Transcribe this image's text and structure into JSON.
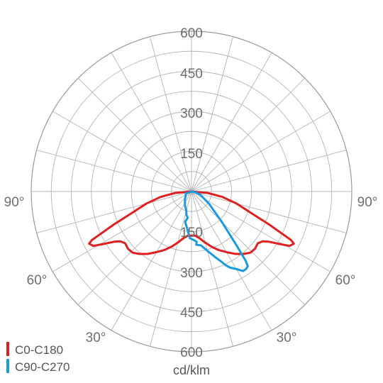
{
  "chart_data": {
    "type": "polar",
    "unit_label": "cd/klm",
    "radial_ticks": [
      "150",
      "300",
      "450",
      "600"
    ],
    "radial_max": 600,
    "angle_labels": [
      {
        "side": "left",
        "label": "90°",
        "angle": 90
      },
      {
        "side": "left",
        "label": "60°",
        "angle": 60
      },
      {
        "side": "left",
        "label": "30°",
        "angle": 30
      },
      {
        "side": "right",
        "label": "90°",
        "angle": 90
      },
      {
        "side": "right",
        "label": "60°",
        "angle": 60
      },
      {
        "side": "right",
        "label": "30°",
        "angle": 30
      }
    ],
    "grid": true,
    "legend_position": "bottom-left",
    "series": [
      {
        "name": "C0-C180",
        "color": "#e02020",
        "points": [
          [
            -90,
            0
          ],
          [
            -85,
            60
          ],
          [
            -80,
            118
          ],
          [
            -75,
            175
          ],
          [
            -70,
            240
          ],
          [
            -67,
            315
          ],
          [
            -65,
            375
          ],
          [
            -64,
            415
          ],
          [
            -63,
            430
          ],
          [
            -61,
            420
          ],
          [
            -59,
            380
          ],
          [
            -57,
            345
          ],
          [
            -55,
            325
          ],
          [
            -52,
            315
          ],
          [
            -48,
            320
          ],
          [
            -44,
            318
          ],
          [
            -40,
            305
          ],
          [
            -35,
            285
          ],
          [
            -30,
            262
          ],
          [
            -25,
            242
          ],
          [
            -20,
            220
          ],
          [
            -15,
            198
          ],
          [
            -10,
            178
          ],
          [
            -5,
            166
          ],
          [
            0,
            165
          ],
          [
            5,
            166
          ],
          [
            10,
            178
          ],
          [
            15,
            198
          ],
          [
            20,
            220
          ],
          [
            25,
            242
          ],
          [
            30,
            262
          ],
          [
            35,
            285
          ],
          [
            40,
            305
          ],
          [
            44,
            318
          ],
          [
            48,
            320
          ],
          [
            52,
            315
          ],
          [
            55,
            325
          ],
          [
            57,
            345
          ],
          [
            59,
            380
          ],
          [
            61,
            420
          ],
          [
            63,
            430
          ],
          [
            64,
            415
          ],
          [
            65,
            375
          ],
          [
            67,
            315
          ],
          [
            70,
            240
          ],
          [
            75,
            175
          ],
          [
            80,
            118
          ],
          [
            85,
            60
          ],
          [
            90,
            0
          ]
        ]
      },
      {
        "name": "C90-C270",
        "color": "#1a9ae0",
        "points": [
          [
            -90,
            0
          ],
          [
            -70,
            22
          ],
          [
            -40,
            38
          ],
          [
            -25,
            58
          ],
          [
            -15,
            75
          ],
          [
            -12,
            90
          ],
          [
            -8,
            100
          ],
          [
            -12,
            115
          ],
          [
            -5,
            150
          ],
          [
            -2,
            175
          ],
          [
            3,
            182
          ],
          [
            6,
            190
          ],
          [
            5,
            200
          ],
          [
            10,
            205
          ],
          [
            15,
            230
          ],
          [
            20,
            262
          ],
          [
            23,
            285
          ],
          [
            25,
            305
          ],
          [
            27,
            320
          ],
          [
            30,
            335
          ],
          [
            33,
            355
          ],
          [
            35,
            355
          ],
          [
            37,
            350
          ],
          [
            38,
            330
          ],
          [
            40,
            260
          ],
          [
            45,
            160
          ],
          [
            55,
            80
          ],
          [
            70,
            35
          ],
          [
            80,
            15
          ],
          [
            90,
            0
          ]
        ]
      }
    ]
  }
}
